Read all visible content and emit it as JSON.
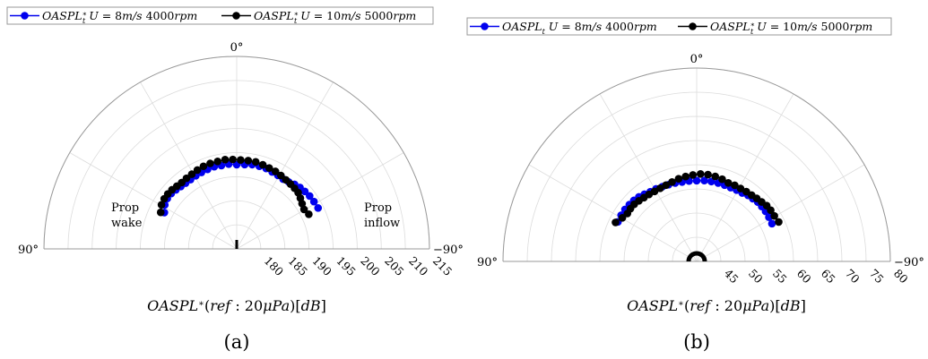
{
  "colors": {
    "series1": "#0000ee",
    "series2": "#000000",
    "grid": "#dcdcdc",
    "frame": "#999999"
  },
  "chart_data": [
    {
      "type": "scatter",
      "panel_label": "(a)",
      "coordinate_system": "polar",
      "theta_labels": {
        "top": "0°",
        "left": "90°",
        "right": "−90°"
      },
      "radial_ticks": [
        "180",
        "185",
        "190",
        "195",
        "200",
        "205",
        "210",
        "215"
      ],
      "radial_range": [
        175,
        215
      ],
      "radial_axis_label": "OASPL*(ref : 20μPa)[dB]",
      "annotations": {
        "wake_line1": "Prop",
        "wake_line2": "wake",
        "inflow_line1": "Prop",
        "inflow_line2": "inflow"
      },
      "legend": [
        "OASPL*_t U = 8m/s 4000rpm",
        "OASPL*_t U = 10m/s 5000rpm"
      ],
      "series": [
        {
          "name": "OASPL*_t U = 8m/s 4000rpm",
          "theta": [
            63.3,
            58.5,
            54.0,
            49.8,
            45.8,
            41.8,
            37.8,
            33.6,
            29.2,
            24.7,
            20.1,
            15.3,
            10.4,
            5.4,
            0.0,
            -5.4,
            -10.4,
            -15.3,
            -20.1,
            -24.7,
            -29.2,
            -33.6,
            -37.8,
            -41.8,
            -45.8,
            -49.8,
            -54.0,
            -58.5,
            -63.3
          ],
          "r": [
            191.8,
            192.5,
            192.8,
            192.8,
            192.6,
            192.4,
            192.3,
            192.3,
            192.4,
            192.5,
            192.6,
            192.7,
            192.6,
            192.7,
            192.5,
            192.6,
            192.8,
            192.8,
            192.8,
            192.6,
            192.5,
            192.4,
            192.6,
            193.0,
            193.3,
            193.5,
            193.7,
            193.8,
            193.9
          ]
        },
        {
          "name": "OASPL*_t U = 10m/s 5000rpm",
          "theta": [
            64.3,
            59.6,
            55.3,
            51.4,
            47.5,
            43.6,
            39.6,
            35.4,
            31.0,
            26.5,
            21.9,
            17.2,
            12.3,
            7.4,
            2.5,
            -2.5,
            -7.4,
            -12.3,
            -17.2,
            -21.9,
            -26.5,
            -31.0,
            -35.4,
            -39.6,
            -43.6,
            -47.5,
            -51.4,
            -55.3,
            -59.6,
            -64.3
          ],
          "r": [
            192.5,
            193.1,
            193.3,
            193.3,
            193.2,
            193.0,
            192.9,
            193.0,
            193.1,
            193.3,
            193.5,
            193.6,
            193.6,
            193.7,
            193.6,
            193.5,
            193.5,
            193.5,
            193.3,
            193.1,
            193.0,
            192.8,
            192.6,
            192.5,
            192.4,
            192.3,
            191.9,
            191.5,
            191.2,
            191.6
          ]
        }
      ]
    },
    {
      "type": "scatter",
      "panel_label": "(b)",
      "coordinate_system": "polar",
      "theta_labels": {
        "top": "0°",
        "left": "90°",
        "right": "−90°"
      },
      "radial_ticks": [
        "45",
        "50",
        "55",
        "60",
        "65",
        "70",
        "75",
        "80"
      ],
      "radial_range": [
        40,
        80
      ],
      "radial_axis_label": "OASPL*(ref : 20μPa)[dB]",
      "legend": [
        "OASPL_t U = 8m/s 4000rpm",
        "OASPL*_t U = 10m/s 5000rpm"
      ],
      "series": [
        {
          "name": "OASPL_t U = 8m/s 4000rpm",
          "theta": [
            -63.3,
            -58.5,
            -54.0,
            -49.8,
            -45.8,
            -41.8,
            -37.8,
            -33.6,
            -29.2,
            -24.7,
            -20.1,
            -15.3,
            -10.4,
            -5.4,
            0.0,
            5.4,
            10.4,
            15.3,
            20.1,
            24.7,
            29.2,
            33.6,
            37.8,
            41.8,
            45.8,
            49.8,
            54.0,
            58.5,
            63.3
          ],
          "r": [
            57.4,
            57.5,
            57.6,
            57.6,
            57.6,
            57.4,
            57.3,
            57.0,
            56.9,
            56.8,
            56.8,
            56.8,
            56.8,
            56.8,
            56.7,
            56.7,
            56.7,
            56.8,
            56.9,
            57.0,
            57.2,
            57.3,
            57.6,
            57.9,
            58.1,
            58.2,
            58.3,
            58.3,
            58.2
          ]
        },
        {
          "name": "OASPL*_t U = 10m/s 5000rpm",
          "theta": [
            -64.3,
            -59.6,
            -55.3,
            -51.4,
            -47.5,
            -43.6,
            -39.6,
            -35.4,
            -31.0,
            -26.5,
            -21.9,
            -17.2,
            -12.3,
            -7.4,
            -2.5,
            2.5,
            7.4,
            12.3,
            17.2,
            21.9,
            26.5,
            31.0,
            35.4,
            39.6,
            43.6,
            47.5,
            51.4,
            55.3,
            59.6,
            64.3
          ],
          "r": [
            58.8,
            58.6,
            58.6,
            58.5,
            58.2,
            58.0,
            57.8,
            57.7,
            57.6,
            57.6,
            57.5,
            57.8,
            58.0,
            58.1,
            58.1,
            57.9,
            57.7,
            57.5,
            57.2,
            57.0,
            56.9,
            56.9,
            57.0,
            57.1,
            57.3,
            57.5,
            57.5,
            57.4,
            57.8,
            58.6
          ]
        }
      ]
    }
  ]
}
